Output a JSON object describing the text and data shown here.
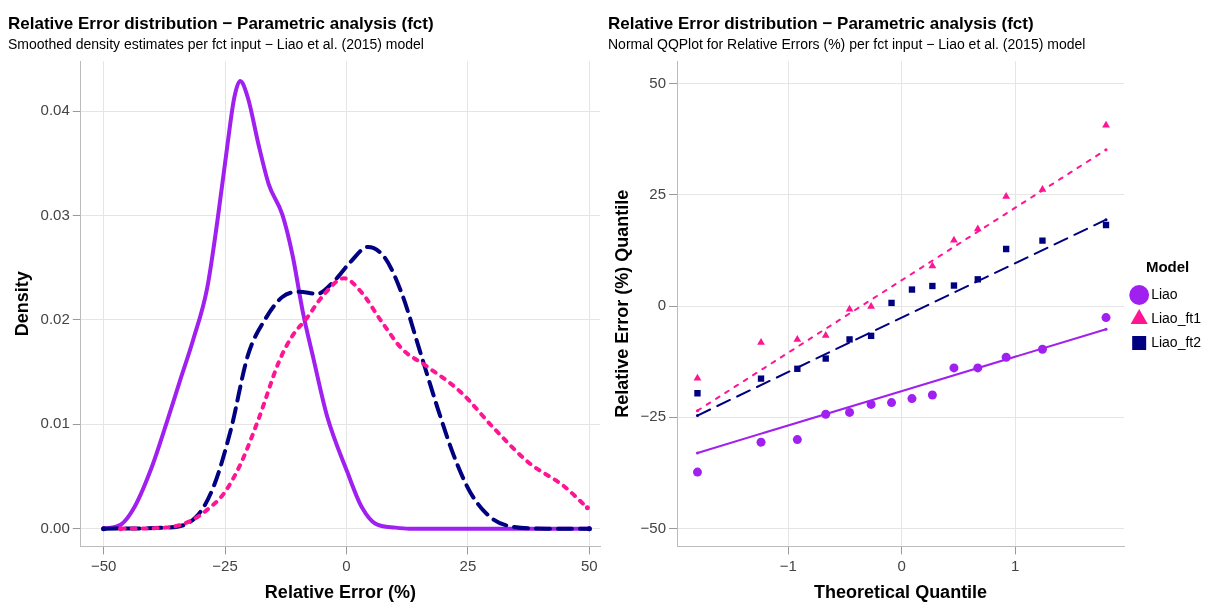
{
  "chart_data": [
    {
      "type": "line",
      "title": "Relative Error distribution − Parametric analysis (fct)",
      "subtitle": "Smoothed density estimates per fct input − Liao et al. (2015) model",
      "xlabel": "Relative Error (%)",
      "ylabel": "Density",
      "xlim": [
        -54.7,
        52.2
      ],
      "ylim": [
        -0.0017,
        0.0448
      ],
      "xticks": [
        -50,
        -25,
        0,
        25,
        50
      ],
      "yticks": [
        {
          "value": 0,
          "label": "0.00"
        },
        {
          "value": 0.01,
          "label": "0.01"
        },
        {
          "value": 0.02,
          "label": "0.02"
        },
        {
          "value": 0.03,
          "label": "0.03"
        },
        {
          "value": 0.04,
          "label": "0.04"
        }
      ],
      "grid": true,
      "legend": false,
      "series": [
        {
          "color": "#a020f0",
          "line_style": "solid",
          "x": [
            -50,
            -46.4,
            -43.5,
            -40,
            -37.2,
            -34.4,
            -31.5,
            -28.7,
            -26.6,
            -24.5,
            -23.1,
            -21.9,
            -20.3,
            -18.1,
            -16,
            -13.2,
            -11.1,
            -9,
            -6.8,
            -4,
            0.2,
            3,
            5.9,
            10.1,
            12.9,
            50
          ],
          "values": [
            0,
            0.0004,
            0.0022,
            0.006,
            0.0099,
            0.014,
            0.0182,
            0.023,
            0.0294,
            0.0368,
            0.0413,
            0.0429,
            0.0413,
            0.0368,
            0.033,
            0.0301,
            0.0262,
            0.0208,
            0.0163,
            0.0108,
            0.0054,
            0.0022,
            0.0005,
            0.0001,
            0,
            0
          ]
        },
        {
          "color": "#ff1493",
          "line_style": "dotted",
          "x": [
            -46.5,
            -37.2,
            -32.3,
            -28.7,
            -25.2,
            -21.7,
            -18.1,
            -13.9,
            -11.1,
            -8.3,
            -4.7,
            -0.5,
            3,
            7.3,
            11.5,
            16.4,
            23.5,
            30.6,
            37.6,
            44.7,
            49.6
          ],
          "values": [
            0,
            0.0001,
            0.0007,
            0.0018,
            0.0034,
            0.0063,
            0.0105,
            0.016,
            0.0185,
            0.0201,
            0.0224,
            0.024,
            0.0227,
            0.0198,
            0.0172,
            0.0156,
            0.0131,
            0.0095,
            0.0063,
            0.0041,
            0.002
          ]
        },
        {
          "color": "#000080",
          "line_style": "dashed",
          "x": [
            -50,
            -37.2,
            -30.8,
            -27.3,
            -23.8,
            -20.3,
            -16.7,
            -13.2,
            -9.7,
            -6.1,
            -2.6,
            0.9,
            4.4,
            8,
            11.5,
            15,
            18.6,
            22.1,
            25.6,
            29.9,
            34.1,
            41.1,
            50
          ],
          "values": [
            0,
            0.0001,
            0.0012,
            0.0041,
            0.0095,
            0.0166,
            0.0201,
            0.0222,
            0.0227,
            0.0225,
            0.0237,
            0.0256,
            0.027,
            0.0259,
            0.0224,
            0.0172,
            0.0118,
            0.007,
            0.0034,
            0.001,
            0.0002,
            0,
            0
          ]
        }
      ]
    },
    {
      "type": "scatter",
      "title": "Relative Error distribution − Parametric analysis (fct)",
      "subtitle": "Normal QQPlot for Relative Errors (%) per fct input − Liao et al. (2015) model",
      "xlabel": "Theoretical Quantile",
      "ylabel": "Relative Error (%) Quantile",
      "xlim": [
        -1.98,
        1.96
      ],
      "ylim": [
        -54,
        55
      ],
      "xticks": [
        -1,
        0,
        1
      ],
      "yticks": [
        -50,
        -25,
        0,
        25,
        50
      ],
      "grid": true,
      "legend": "right",
      "legend_title": "Model",
      "x": [
        -1.8,
        -1.24,
        -0.92,
        -0.67,
        -0.46,
        -0.27,
        -0.09,
        0.09,
        0.27,
        0.46,
        0.67,
        0.92,
        1.24,
        1.8
      ],
      "series": [
        {
          "name": "Liao",
          "color": "#a020f0",
          "marker": "circle",
          "values": [
            -37.3,
            -30.6,
            -30.0,
            -24.3,
            -23.9,
            -22.1,
            -21.7,
            -20.8,
            -20.0,
            -13.9,
            -13.9,
            -11.5,
            -9.7,
            -2.6
          ]
        },
        {
          "name": "Liao_ft1",
          "color": "#ff1493",
          "marker": "triangle",
          "values": [
            -16.2,
            -8.2,
            -7.5,
            -6.6,
            -0.7,
            -0.1,
            null,
            null,
            9.0,
            14.8,
            17.3,
            24.6,
            26.2,
            40.6
          ]
        },
        {
          "name": "Liao_ft2",
          "color": "#000080",
          "marker": "square",
          "values": [
            -19.6,
            -16.3,
            -14.1,
            -11.8,
            -7.5,
            -6.7,
            0.7,
            3.7,
            4.5,
            4.6,
            6.0,
            12.8,
            14.7,
            18.2
          ]
        },
        {
          "type": "line",
          "color": "#a020f0",
          "line_style": "solid",
          "x": [
            -1.8,
            1.8
          ],
          "values": [
            -33.0,
            -5.2
          ]
        },
        {
          "type": "line",
          "color": "#ff1493",
          "line_style": "dotted",
          "x": [
            -1.8,
            1.8
          ],
          "values": [
            -23.5,
            35.1
          ]
        },
        {
          "type": "line",
          "color": "#000080",
          "line_style": "dashed",
          "x": [
            -1.8,
            1.8
          ],
          "values": [
            -24.6,
            19.4
          ]
        }
      ]
    }
  ]
}
